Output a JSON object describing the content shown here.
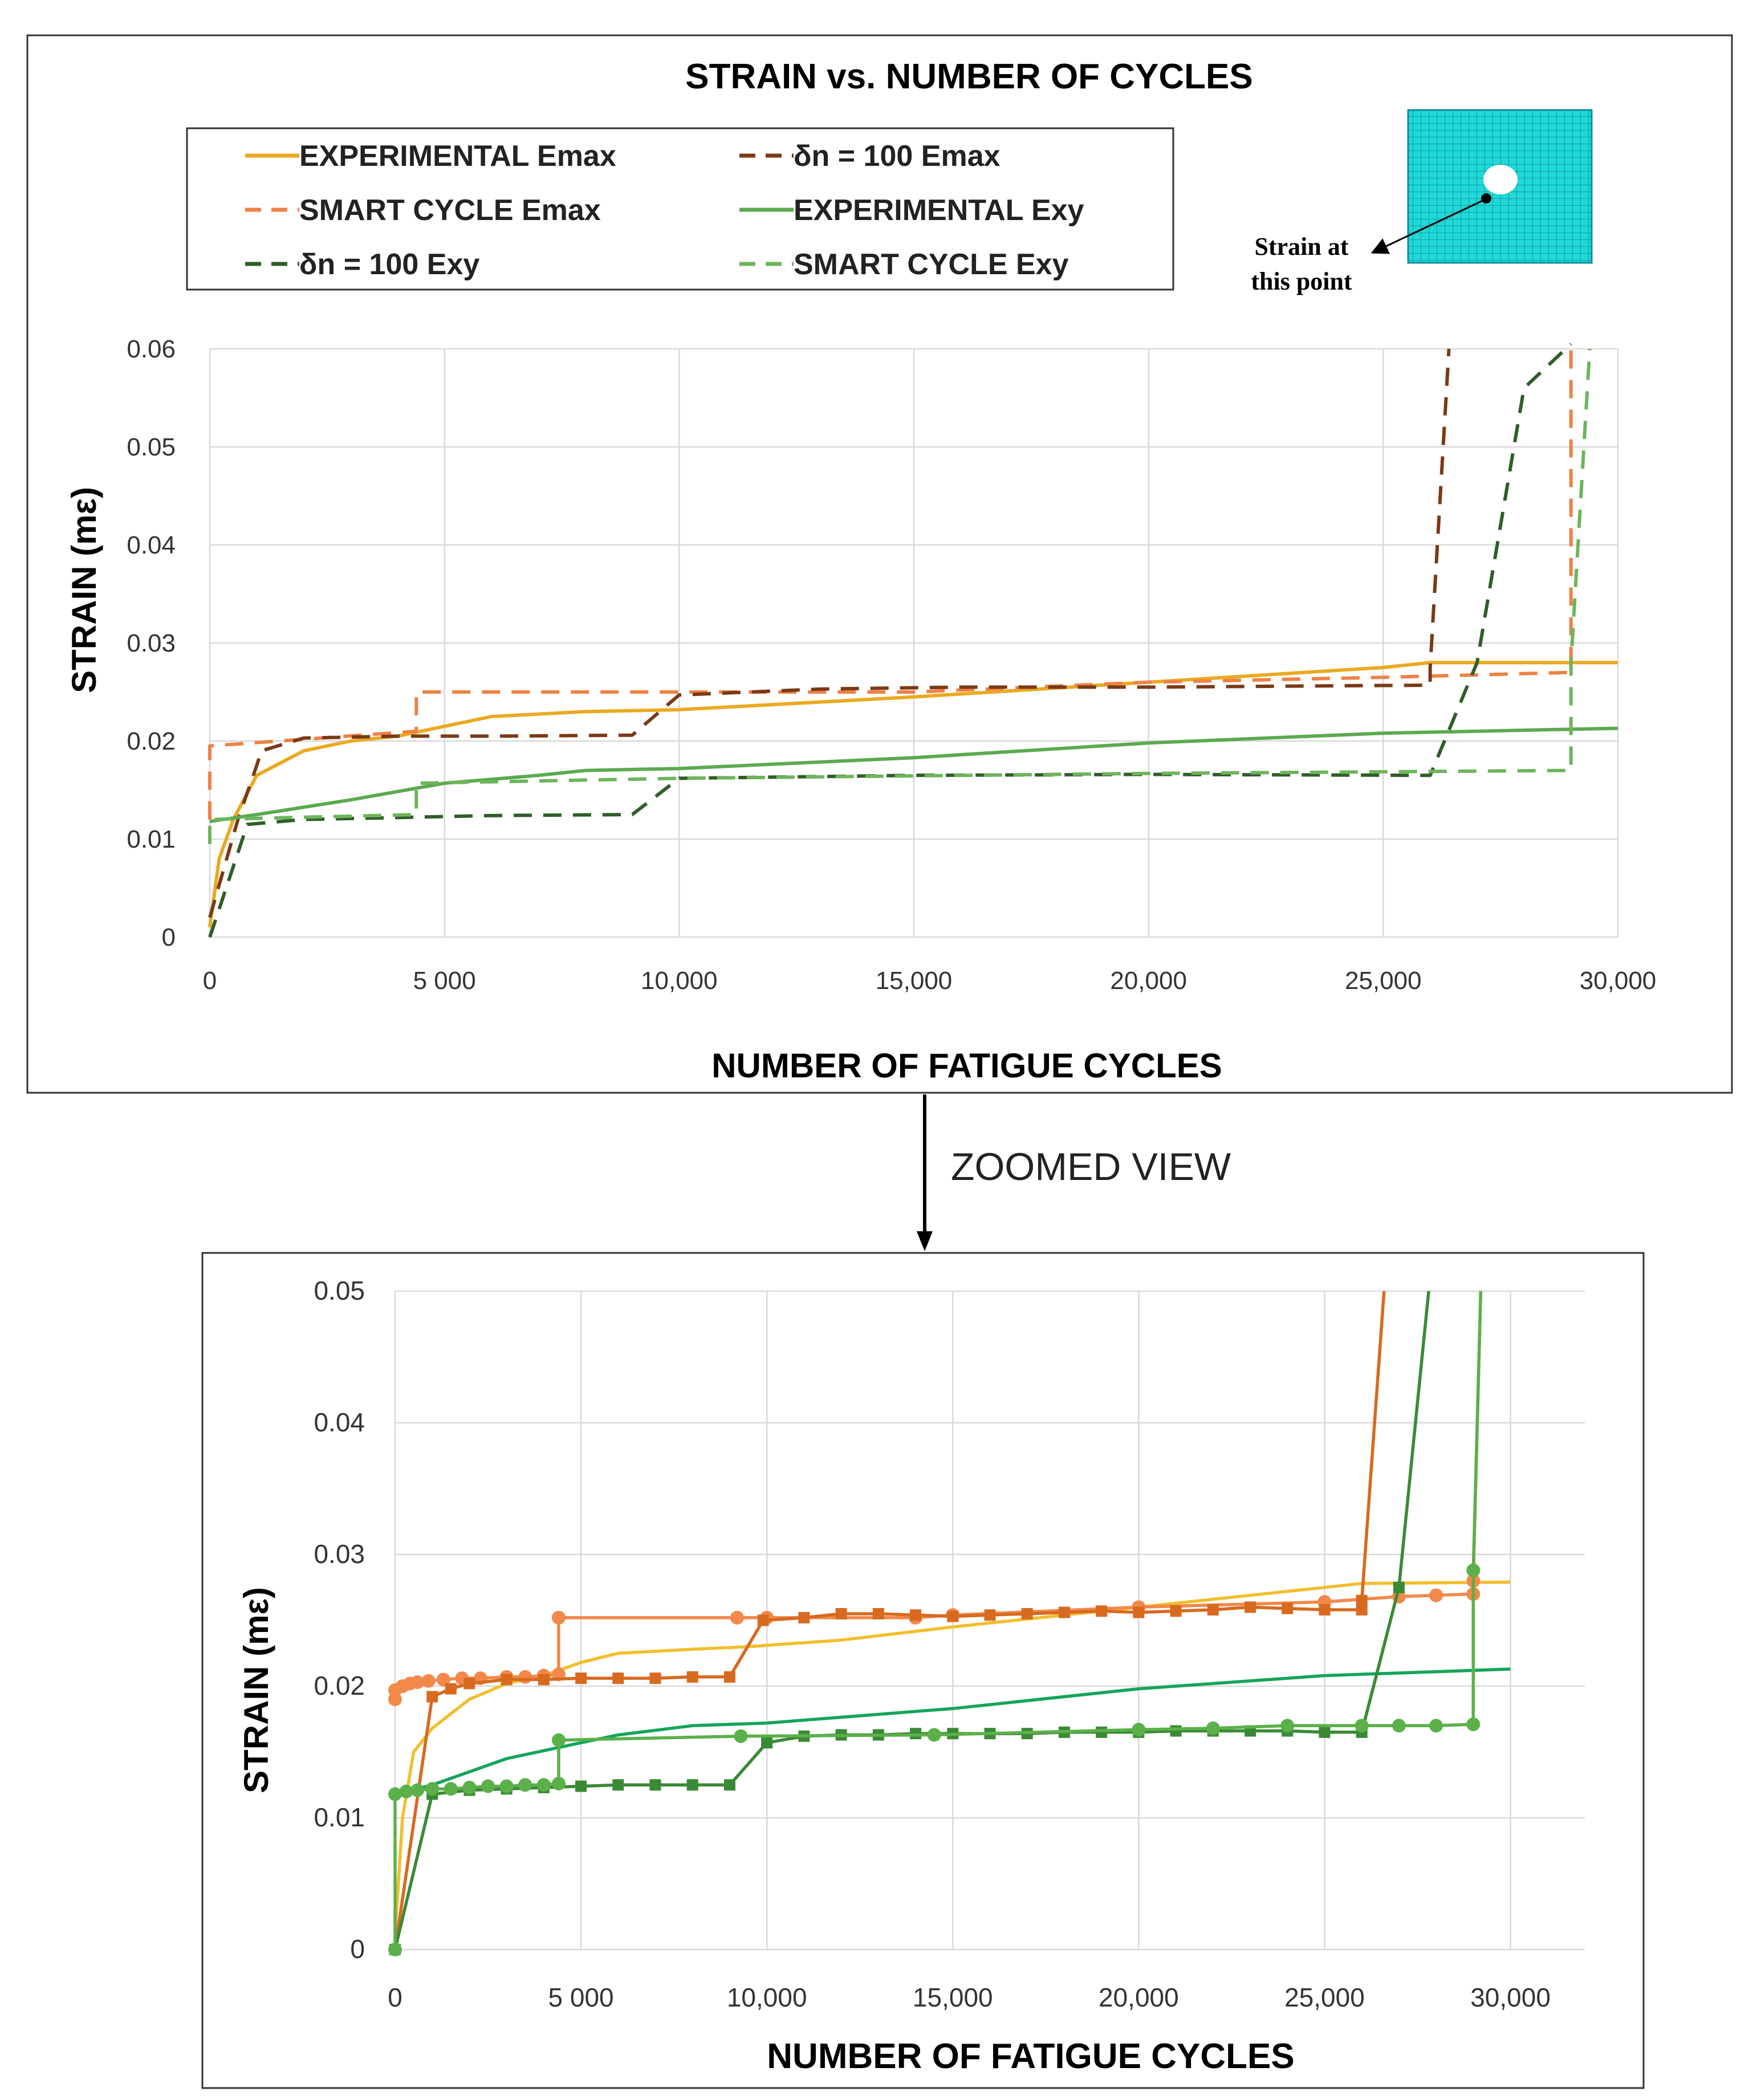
{
  "zoom_label": "ZOOMED VIEW",
  "inset": {
    "line1": "Strain at",
    "line2": "this point"
  },
  "colors": {
    "exp_emax": "#EBA921",
    "smart_emax": "#ED8245",
    "dn_emax": "#7A3A16",
    "exp_exy": "#5BAA4F",
    "dn_exy": "#2F5E28",
    "smart_exy": "#6EB45C",
    "z_exp_emax": "#F2BE2E",
    "z_smart_emax": "#F2884A",
    "z_dn_emax": "#D86A20",
    "z_exp_exy": "#14A55A",
    "z_dn_exy": "#3A8A35",
    "z_smart_exy": "#5BB04A",
    "mesh": "#20D8D8"
  },
  "chart_data": [
    {
      "type": "line",
      "title": "STRAIN vs. NUMBER OF CYCLES",
      "xlabel": "NUMBER OF FATIGUE CYCLES",
      "ylabel": "STRAIN (mε)",
      "xlim": [
        0,
        30000
      ],
      "ylim": [
        0,
        0.06
      ],
      "xticks": [
        0,
        5000,
        10000,
        15000,
        20000,
        25000,
        30000
      ],
      "xtick_labels": [
        "0",
        "5 000",
        "10,000",
        "15,000",
        "20,000",
        "25,000",
        "30,000"
      ],
      "yticks": [
        0,
        0.01,
        0.02,
        0.03,
        0.04,
        0.05,
        0.06
      ],
      "ytick_labels": [
        "0",
        "0.01",
        "0.02",
        "0.03",
        "0.04",
        "0.05",
        "0.06"
      ],
      "grid": true,
      "legend_position": "top",
      "series": [
        {
          "name": "EXPERIMENTAL Emax",
          "style": "solid",
          "color_key": "exp_emax",
          "points": [
            [
              0,
              0.001
            ],
            [
              200,
              0.008
            ],
            [
              500,
              0.012
            ],
            [
              1000,
              0.0165
            ],
            [
              2000,
              0.019
            ],
            [
              3000,
              0.02
            ],
            [
              4000,
              0.0205
            ],
            [
              5000,
              0.0215
            ],
            [
              6000,
              0.0225
            ],
            [
              8000,
              0.023
            ],
            [
              10000,
              0.0232
            ],
            [
              15000,
              0.0245
            ],
            [
              20000,
              0.026
            ],
            [
              25000,
              0.0275
            ],
            [
              26000,
              0.028
            ],
            [
              30000,
              0.028
            ]
          ]
        },
        {
          "name": "SMART CYCLE Emax",
          "style": "dashed",
          "color_key": "smart_emax",
          "points": [
            [
              0,
              0.012
            ],
            [
              0,
              0.0195
            ],
            [
              4400,
              0.021
            ],
            [
              4400,
              0.025
            ],
            [
              9000,
              0.025
            ],
            [
              10000,
              0.025
            ],
            [
              15000,
              0.025
            ],
            [
              20000,
              0.026
            ],
            [
              25000,
              0.0265
            ],
            [
              29000,
              0.027
            ],
            [
              29000,
              0.03
            ],
            [
              29000,
              0.06
            ]
          ]
        },
        {
          "name": "δn = 100 Emax",
          "style": "dashed",
          "color_key": "dn_emax",
          "points": [
            [
              0,
              0.002
            ],
            [
              600,
              0.012
            ],
            [
              1000,
              0.0175
            ],
            [
              1100,
              0.019
            ],
            [
              2000,
              0.0203
            ],
            [
              4000,
              0.0205
            ],
            [
              6000,
              0.0205
            ],
            [
              9000,
              0.0206
            ],
            [
              10000,
              0.0247
            ],
            [
              13000,
              0.0253
            ],
            [
              16000,
              0.0255
            ],
            [
              20000,
              0.0255
            ],
            [
              26000,
              0.0257
            ],
            [
              26000,
              0.0275
            ],
            [
              26400,
              0.06
            ]
          ]
        },
        {
          "name": "EXPERIMENTAL Exy",
          "style": "solid",
          "color_key": "exp_exy",
          "points": [
            [
              0,
              0.0118
            ],
            [
              1000,
              0.0125
            ],
            [
              3000,
              0.014
            ],
            [
              5000,
              0.0157
            ],
            [
              7000,
              0.0165
            ],
            [
              8000,
              0.017
            ],
            [
              10000,
              0.0172
            ],
            [
              15000,
              0.0183
            ],
            [
              20000,
              0.0198
            ],
            [
              25000,
              0.0208
            ],
            [
              30000,
              0.0213
            ]
          ]
        },
        {
          "name": "δn = 100 Exy",
          "style": "dashed",
          "color_key": "dn_exy",
          "points": [
            [
              0,
              0.0
            ],
            [
              800,
              0.0115
            ],
            [
              2000,
              0.012
            ],
            [
              4000,
              0.0122
            ],
            [
              6000,
              0.0124
            ],
            [
              9000,
              0.0125
            ],
            [
              10000,
              0.0162
            ],
            [
              15000,
              0.0165
            ],
            [
              20000,
              0.0166
            ],
            [
              26000,
              0.0165
            ],
            [
              27000,
              0.028
            ],
            [
              28000,
              0.056
            ],
            [
              29000,
              0.0605
            ]
          ]
        },
        {
          "name": "SMART CYCLE Exy",
          "style": "dashed",
          "color_key": "smart_exy",
          "points": [
            [
              0,
              0.0095
            ],
            [
              0,
              0.012
            ],
            [
              4400,
              0.0125
            ],
            [
              4400,
              0.0157
            ],
            [
              10000,
              0.0162
            ],
            [
              20000,
              0.0167
            ],
            [
              29000,
              0.017
            ],
            [
              29000,
              0.028
            ],
            [
              29400,
              0.06
            ]
          ]
        }
      ]
    },
    {
      "type": "line",
      "title": "",
      "xlabel": "NUMBER OF FATIGUE CYCLES",
      "ylabel": "STRAIN (mε)",
      "xlim": [
        0,
        32000
      ],
      "ylim": [
        0,
        0.05
      ],
      "xticks": [
        0,
        5000,
        10000,
        15000,
        20000,
        25000,
        30000
      ],
      "xtick_labels": [
        "0",
        "5 000",
        "10,000",
        "15,000",
        "20,000",
        "25,000",
        "30,000"
      ],
      "yticks": [
        0,
        0.01,
        0.02,
        0.03,
        0.04,
        0.05
      ],
      "ytick_labels": [
        "0",
        "0.01",
        "0.02",
        "0.03",
        "0.04",
        "0.05"
      ],
      "grid": true,
      "series": [
        {
          "name": "EXPERIMENTAL Emax",
          "color_key": "z_exp_emax",
          "marker": "none",
          "points": [
            [
              0,
              0.001
            ],
            [
              200,
              0.01
            ],
            [
              500,
              0.015
            ],
            [
              1000,
              0.0168
            ],
            [
              2000,
              0.019
            ],
            [
              3000,
              0.0202
            ],
            [
              4000,
              0.0208
            ],
            [
              5000,
              0.0218
            ],
            [
              6000,
              0.0225
            ],
            [
              8000,
              0.0228
            ],
            [
              9500,
              0.023
            ],
            [
              12000,
              0.0235
            ],
            [
              15000,
              0.0245
            ],
            [
              20000,
              0.026
            ],
            [
              25000,
              0.0275
            ],
            [
              26000,
              0.0278
            ],
            [
              30000,
              0.0279
            ]
          ]
        },
        {
          "name": "SMART CYCLE Emax",
          "color_key": "z_smart_emax",
          "marker": "circle",
          "points": [
            [
              0,
              0.019
            ],
            [
              0,
              0.0197
            ],
            [
              200,
              0.02
            ],
            [
              400,
              0.0202
            ],
            [
              600,
              0.0203
            ],
            [
              900,
              0.0204
            ],
            [
              1300,
              0.0205
            ],
            [
              1800,
              0.0206
            ],
            [
              2300,
              0.0206
            ],
            [
              3000,
              0.0207
            ],
            [
              3500,
              0.0207
            ],
            [
              4000,
              0.0208
            ],
            [
              4400,
              0.0209
            ],
            [
              4400,
              0.0252
            ],
            [
              9200,
              0.0252
            ],
            [
              10000,
              0.0252
            ],
            [
              14000,
              0.0252
            ],
            [
              15000,
              0.0254
            ],
            [
              20000,
              0.026
            ],
            [
              25000,
              0.0264
            ],
            [
              27000,
              0.0268
            ],
            [
              28000,
              0.0269
            ],
            [
              29000,
              0.027
            ],
            [
              29000,
              0.028
            ],
            [
              29200,
              0.05
            ]
          ]
        },
        {
          "name": "δn = 100 Emax",
          "color_key": "z_dn_emax",
          "marker": "square",
          "points": [
            [
              0,
              0.0
            ],
            [
              1000,
              0.0192
            ],
            [
              1500,
              0.0198
            ],
            [
              2000,
              0.0202
            ],
            [
              3000,
              0.0205
            ],
            [
              4000,
              0.0205
            ],
            [
              5000,
              0.0206
            ],
            [
              6000,
              0.0206
            ],
            [
              7000,
              0.0206
            ],
            [
              8000,
              0.0207
            ],
            [
              9000,
              0.0207
            ],
            [
              9900,
              0.025
            ],
            [
              11000,
              0.0252
            ],
            [
              12000,
              0.0255
            ],
            [
              13000,
              0.0255
            ],
            [
              14000,
              0.0254
            ],
            [
              15000,
              0.0253
            ],
            [
              16000,
              0.0254
            ],
            [
              17000,
              0.0255
            ],
            [
              18000,
              0.0256
            ],
            [
              19000,
              0.0257
            ],
            [
              20000,
              0.0256
            ],
            [
              21000,
              0.0257
            ],
            [
              22000,
              0.0258
            ],
            [
              23000,
              0.026
            ],
            [
              24000,
              0.0259
            ],
            [
              25000,
              0.0258
            ],
            [
              26000,
              0.0258
            ],
            [
              26000,
              0.0265
            ],
            [
              26600,
              0.05
            ]
          ]
        },
        {
          "name": "EXPERIMENTAL Exy",
          "color_key": "z_exp_exy",
          "marker": "none",
          "points": [
            [
              0,
              0.0118
            ],
            [
              1000,
              0.0125
            ],
            [
              3000,
              0.0145
            ],
            [
              5000,
              0.0157
            ],
            [
              6000,
              0.0163
            ],
            [
              8000,
              0.017
            ],
            [
              10000,
              0.0172
            ],
            [
              15000,
              0.0183
            ],
            [
              20000,
              0.0198
            ],
            [
              25000,
              0.0208
            ],
            [
              30000,
              0.0213
            ]
          ]
        },
        {
          "name": "δn = 100 Exy",
          "color_key": "z_dn_exy",
          "marker": "square",
          "points": [
            [
              0,
              0.0
            ],
            [
              1000,
              0.0118
            ],
            [
              2000,
              0.0121
            ],
            [
              3000,
              0.0122
            ],
            [
              4000,
              0.0123
            ],
            [
              5000,
              0.0124
            ],
            [
              6000,
              0.0125
            ],
            [
              7000,
              0.0125
            ],
            [
              8000,
              0.0125
            ],
            [
              9000,
              0.0125
            ],
            [
              10000,
              0.0157
            ],
            [
              11000,
              0.0162
            ],
            [
              12000,
              0.0163
            ],
            [
              13000,
              0.0163
            ],
            [
              14000,
              0.0164
            ],
            [
              15000,
              0.0164
            ],
            [
              16000,
              0.0164
            ],
            [
              17000,
              0.0164
            ],
            [
              18000,
              0.0165
            ],
            [
              19000,
              0.0165
            ],
            [
              20000,
              0.0165
            ],
            [
              21000,
              0.0166
            ],
            [
              22000,
              0.0166
            ],
            [
              23000,
              0.0166
            ],
            [
              24000,
              0.0166
            ],
            [
              25000,
              0.0165
            ],
            [
              26000,
              0.0165
            ],
            [
              27000,
              0.0275
            ],
            [
              27800,
              0.05
            ]
          ]
        },
        {
          "name": "SMART CYCLE Exy",
          "color_key": "z_smart_exy",
          "marker": "circle",
          "points": [
            [
              0,
              0.0
            ],
            [
              0,
              0.0118
            ],
            [
              300,
              0.012
            ],
            [
              600,
              0.0121
            ],
            [
              1000,
              0.0122
            ],
            [
              1500,
              0.0122
            ],
            [
              2000,
              0.0123
            ],
            [
              2500,
              0.0124
            ],
            [
              3000,
              0.0124
            ],
            [
              3500,
              0.0125
            ],
            [
              4000,
              0.0125
            ],
            [
              4400,
              0.0126
            ],
            [
              4400,
              0.0159
            ],
            [
              9300,
              0.0162
            ],
            [
              14500,
              0.0163
            ],
            [
              20000,
              0.0167
            ],
            [
              22000,
              0.0168
            ],
            [
              24000,
              0.017
            ],
            [
              26000,
              0.017
            ],
            [
              27000,
              0.017
            ],
            [
              28000,
              0.017
            ],
            [
              29000,
              0.0171
            ],
            [
              29000,
              0.0288
            ],
            [
              29200,
              0.05
            ]
          ]
        }
      ]
    }
  ]
}
